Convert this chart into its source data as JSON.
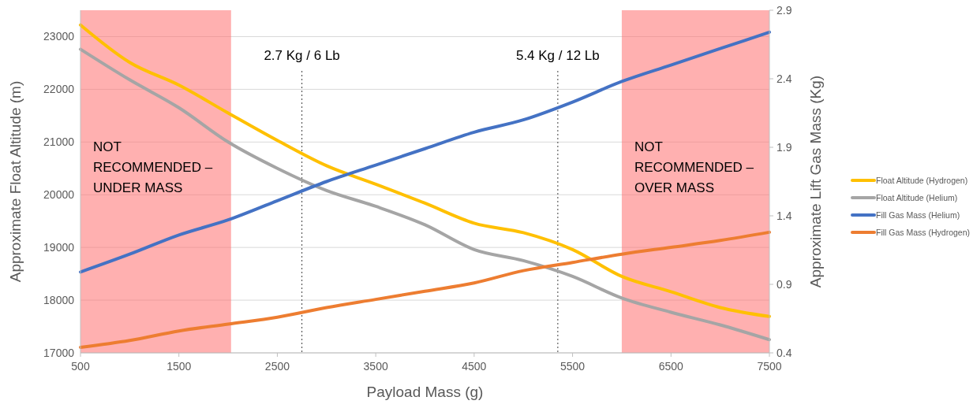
{
  "chart_data": {
    "type": "line",
    "xlabel": "Payload Mass (g)",
    "ylabel": "Approximate Float Altitude (m)",
    "y2label": "Approximate Lift Gas Mass (Kg)",
    "x": [
      500,
      1000,
      1500,
      2000,
      2500,
      3000,
      3500,
      4000,
      4500,
      5000,
      5500,
      6000,
      6500,
      7000,
      7500
    ],
    "xlim": [
      500,
      7500
    ],
    "xticks": [
      500,
      1500,
      2500,
      3500,
      4500,
      5500,
      6500,
      7500
    ],
    "ylim": [
      17000,
      23500
    ],
    "yticks": [
      17000,
      18000,
      19000,
      20000,
      21000,
      22000,
      23000
    ],
    "y2lim": [
      0.4,
      2.9
    ],
    "y2ticks": [
      0.4,
      0.9,
      1.4,
      1.9,
      2.4,
      2.9
    ],
    "grid": "y",
    "legend": "right",
    "line_style": "solid",
    "marker": "none",
    "series": [
      {
        "name": "Float Altitude (Hydrogen)",
        "color": "#ffc000",
        "values": [
          23220,
          22510,
          22080,
          21550,
          21030,
          20550,
          20200,
          19840,
          19460,
          19280,
          18960,
          18450,
          18160,
          17860,
          17690
        ]
      },
      {
        "name": "Float Altitude (Helium)",
        "color": "#a5a5a5",
        "values": [
          22760,
          22180,
          21650,
          21000,
          20500,
          20080,
          19780,
          19430,
          18960,
          18750,
          18450,
          18040,
          17770,
          17530,
          17250
        ]
      },
      {
        "name": "Fill Gas Mass (Helium)",
        "color": "#4472c4",
        "axis": "y2",
        "values": [
          0.99,
          1.12,
          1.26,
          1.37,
          1.51,
          1.65,
          1.77,
          1.89,
          2.01,
          2.1,
          2.23,
          2.38,
          2.5,
          2.62,
          2.74
        ]
      },
      {
        "name": "Fill Gas Mass (Hydrogen)",
        "color": "#ed7d31",
        "axis": "y2",
        "values": [
          0.44,
          0.49,
          0.56,
          0.61,
          0.66,
          0.73,
          0.79,
          0.85,
          0.91,
          1.0,
          1.06,
          1.12,
          1.17,
          1.22,
          1.28
        ]
      }
    ],
    "ref_lines": [
      {
        "axis": "x",
        "value": 2750,
        "label": "2.7 Kg / 6 Lb",
        "line_style": "dotted",
        "color": "#404040"
      },
      {
        "axis": "x",
        "value": 5350,
        "label": "5.4 Kg / 12 Lb",
        "line_style": "dotted",
        "color": "#404040"
      }
    ],
    "bands": [
      {
        "axis": "x",
        "from": 500,
        "to": 2030,
        "label": "NOT RECOMMENDED – UNDER MASS",
        "color": "#ff6f6f"
      },
      {
        "axis": "x",
        "from": 6000,
        "to": 7500,
        "label": "NOT RECOMMENDED – OVER MASS",
        "color": "#ff6f6f"
      }
    ]
  }
}
